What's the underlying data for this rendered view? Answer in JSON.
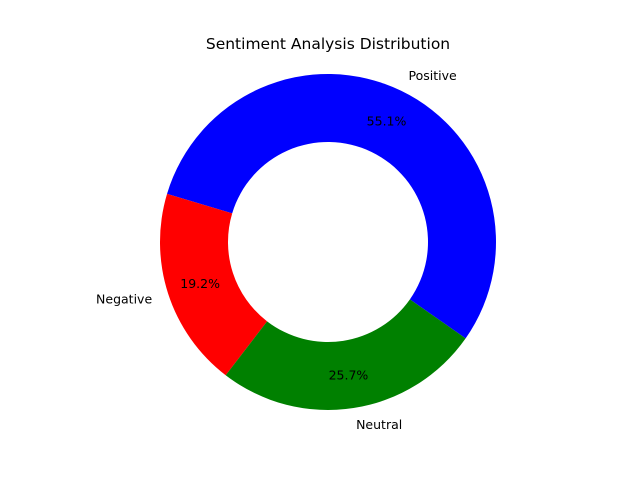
{
  "chart_data": {
    "type": "pie",
    "donut": true,
    "title": "Sentiment Analysis Distribution",
    "categories": [
      "Positive",
      "Negative",
      "Neutral"
    ],
    "values": [
      55.1,
      19.2,
      25.7
    ],
    "percent_labels": [
      "55.1%",
      "19.2%",
      "25.7%"
    ],
    "colors": [
      "#0000ff",
      "#ff0000",
      "#008000"
    ],
    "start_angle_deg": -35,
    "direction": "counterclockwise",
    "legend": "none"
  }
}
